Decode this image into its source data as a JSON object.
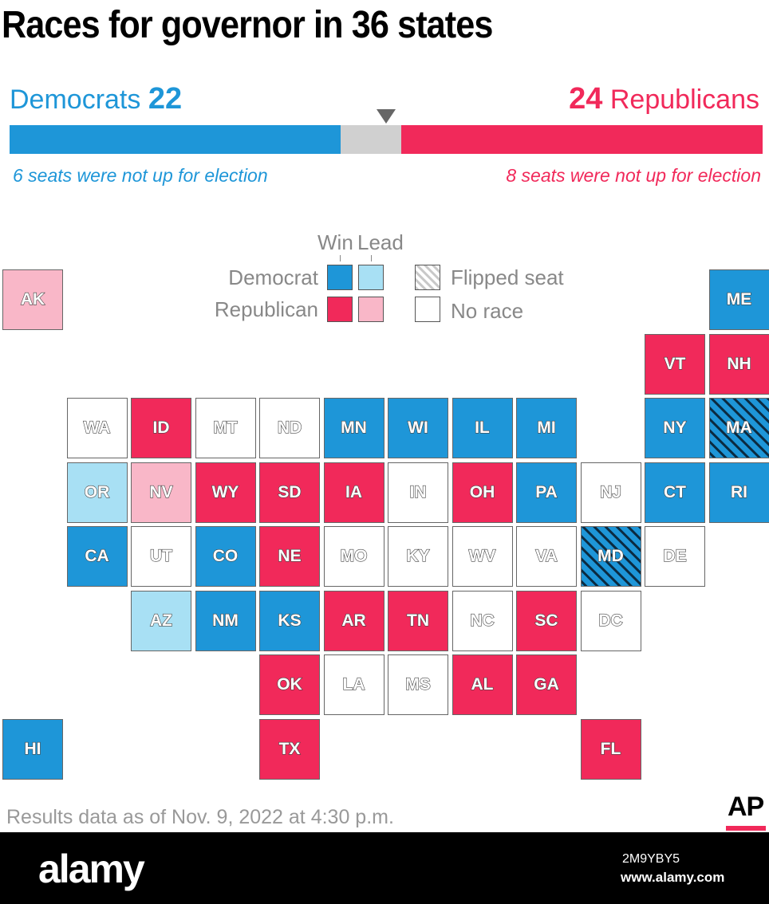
{
  "title": "Races for governor in 36 states",
  "democrats": {
    "label": "Democrats",
    "count": "22",
    "not_up": 6,
    "note": "6 seats were not up for election"
  },
  "republicans": {
    "label": "Republicans",
    "count": "24",
    "not_up": 8,
    "note": "8 seats were not up for election"
  },
  "bar": {
    "total": 50,
    "dem": 22,
    "rep": 24
  },
  "colors": {
    "dem_win": "#1e96d8",
    "dem_lead": "#a8e0f4",
    "rep_win": "#f1295a",
    "rep_lead": "#f9b7c8",
    "no_race": "#ffffff",
    "undecided": "#d0d0d0"
  },
  "legend": {
    "win": "Win",
    "lead": "Lead",
    "democrat": "Democrat",
    "republican": "Republican",
    "flipped": "Flipped seat",
    "no_race": "No race"
  },
  "states": [
    {
      "abbr": "AK",
      "status": "rep_lead",
      "col": 0,
      "row": 0
    },
    {
      "abbr": "ME",
      "status": "dem_win",
      "col": 11,
      "row": 0
    },
    {
      "abbr": "VT",
      "status": "rep_win",
      "col": 10,
      "row": 1
    },
    {
      "abbr": "NH",
      "status": "rep_win",
      "col": 11,
      "row": 1
    },
    {
      "abbr": "WA",
      "status": "no_race",
      "col": 1,
      "row": 2
    },
    {
      "abbr": "ID",
      "status": "rep_win",
      "col": 2,
      "row": 2
    },
    {
      "abbr": "MT",
      "status": "no_race",
      "col": 3,
      "row": 2
    },
    {
      "abbr": "ND",
      "status": "no_race",
      "col": 4,
      "row": 2
    },
    {
      "abbr": "MN",
      "status": "dem_win",
      "col": 5,
      "row": 2
    },
    {
      "abbr": "WI",
      "status": "dem_win",
      "col": 6,
      "row": 2
    },
    {
      "abbr": "IL",
      "status": "dem_win",
      "col": 7,
      "row": 2
    },
    {
      "abbr": "MI",
      "status": "dem_win",
      "col": 8,
      "row": 2
    },
    {
      "abbr": "NY",
      "status": "dem_win",
      "col": 10,
      "row": 2
    },
    {
      "abbr": "MA",
      "status": "dem_win",
      "flipped": true,
      "col": 11,
      "row": 2
    },
    {
      "abbr": "OR",
      "status": "dem_lead",
      "col": 1,
      "row": 3
    },
    {
      "abbr": "NV",
      "status": "rep_lead",
      "col": 2,
      "row": 3
    },
    {
      "abbr": "WY",
      "status": "rep_win",
      "col": 3,
      "row": 3
    },
    {
      "abbr": "SD",
      "status": "rep_win",
      "col": 4,
      "row": 3
    },
    {
      "abbr": "IA",
      "status": "rep_win",
      "col": 5,
      "row": 3
    },
    {
      "abbr": "IN",
      "status": "no_race",
      "col": 6,
      "row": 3
    },
    {
      "abbr": "OH",
      "status": "rep_win",
      "col": 7,
      "row": 3
    },
    {
      "abbr": "PA",
      "status": "dem_win",
      "col": 8,
      "row": 3
    },
    {
      "abbr": "NJ",
      "status": "no_race",
      "col": 9,
      "row": 3
    },
    {
      "abbr": "CT",
      "status": "dem_win",
      "col": 10,
      "row": 3
    },
    {
      "abbr": "RI",
      "status": "dem_win",
      "col": 11,
      "row": 3
    },
    {
      "abbr": "CA",
      "status": "dem_win",
      "col": 1,
      "row": 4
    },
    {
      "abbr": "UT",
      "status": "no_race",
      "col": 2,
      "row": 4
    },
    {
      "abbr": "CO",
      "status": "dem_win",
      "col": 3,
      "row": 4
    },
    {
      "abbr": "NE",
      "status": "rep_win",
      "col": 4,
      "row": 4
    },
    {
      "abbr": "MO",
      "status": "no_race",
      "col": 5,
      "row": 4
    },
    {
      "abbr": "KY",
      "status": "no_race",
      "col": 6,
      "row": 4
    },
    {
      "abbr": "WV",
      "status": "no_race",
      "col": 7,
      "row": 4
    },
    {
      "abbr": "VA",
      "status": "no_race",
      "col": 8,
      "row": 4
    },
    {
      "abbr": "MD",
      "status": "dem_win",
      "flipped": true,
      "col": 9,
      "row": 4
    },
    {
      "abbr": "DE",
      "status": "no_race",
      "col": 10,
      "row": 4
    },
    {
      "abbr": "AZ",
      "status": "dem_lead",
      "col": 2,
      "row": 5
    },
    {
      "abbr": "NM",
      "status": "dem_win",
      "col": 3,
      "row": 5
    },
    {
      "abbr": "KS",
      "status": "dem_win",
      "col": 4,
      "row": 5
    },
    {
      "abbr": "AR",
      "status": "rep_win",
      "col": 5,
      "row": 5
    },
    {
      "abbr": "TN",
      "status": "rep_win",
      "col": 6,
      "row": 5
    },
    {
      "abbr": "NC",
      "status": "no_race",
      "col": 7,
      "row": 5
    },
    {
      "abbr": "SC",
      "status": "rep_win",
      "col": 8,
      "row": 5
    },
    {
      "abbr": "DC",
      "status": "no_race",
      "col": 9,
      "row": 5
    },
    {
      "abbr": "OK",
      "status": "rep_win",
      "col": 4,
      "row": 6
    },
    {
      "abbr": "LA",
      "status": "no_race",
      "col": 5,
      "row": 6
    },
    {
      "abbr": "MS",
      "status": "no_race",
      "col": 6,
      "row": 6
    },
    {
      "abbr": "AL",
      "status": "rep_win",
      "col": 7,
      "row": 6
    },
    {
      "abbr": "GA",
      "status": "rep_win",
      "col": 8,
      "row": 6
    },
    {
      "abbr": "HI",
      "status": "dem_win",
      "col": 0,
      "row": 7
    },
    {
      "abbr": "TX",
      "status": "rep_win",
      "col": 4,
      "row": 7
    },
    {
      "abbr": "FL",
      "status": "rep_win",
      "col": 9,
      "row": 7
    }
  ],
  "footnote": "Results data as of Nov. 9, 2022 at 4:30 p.m.",
  "logo": "AP",
  "stock": {
    "logo": "alamy",
    "id": "2M9YBY5",
    "url": "www.alamy.com"
  }
}
